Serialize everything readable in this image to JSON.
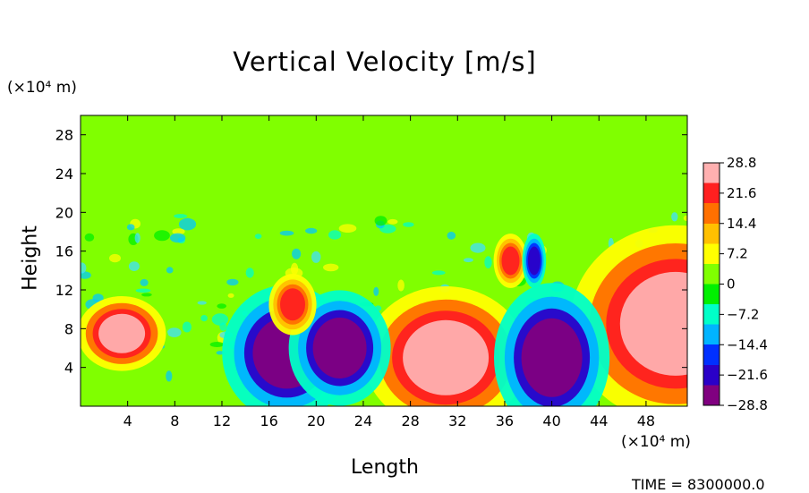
{
  "chart_data": {
    "type": "heatmap",
    "title": "Vertical Velocity [m/s]",
    "xlabel": "Length",
    "ylabel": "Height",
    "x_unit_label": "(×10⁴ m)",
    "y_unit_label": "(×10⁴ m)",
    "xlim": [
      0,
      51.5
    ],
    "ylim": [
      0,
      30
    ],
    "x_ticks": [
      "4",
      "8",
      "12",
      "16",
      "20",
      "24",
      "28",
      "32",
      "36",
      "40",
      "44",
      "48"
    ],
    "x_tick_values": [
      4,
      8,
      12,
      16,
      20,
      24,
      28,
      32,
      36,
      40,
      44,
      48
    ],
    "y_ticks": [
      "4",
      "8",
      "12",
      "16",
      "20",
      "24",
      "28"
    ],
    "y_tick_values": [
      4,
      8,
      12,
      16,
      20,
      24,
      28
    ],
    "colorbar": {
      "range": [
        -28.8,
        28.8
      ],
      "labels": [
        "28.8",
        "21.6",
        "14.4",
        "7.2",
        "0",
        "−7.2",
        "−14.4",
        "−21.6",
        "−28.8"
      ],
      "label_values": [
        28.8,
        21.6,
        14.4,
        7.2,
        0,
        -7.2,
        -14.4,
        -21.6,
        -28.8
      ],
      "colors": [
        "#800080",
        "#2a00c8",
        "#0030ff",
        "#00b4ff",
        "#00ffc8",
        "#00f000",
        "#80ff00",
        "#ffff00",
        "#ffc000",
        "#ff7000",
        "#ff2020",
        "#ffb0b0"
      ]
    },
    "background_value": 0,
    "features": [
      {
        "x": 3.5,
        "y": 7.5,
        "value": 28.8
      },
      {
        "x": 50.5,
        "y": 8.5,
        "value": 28.8
      },
      {
        "x": 31,
        "y": 5,
        "value": 28.8
      },
      {
        "x": 17.5,
        "y": 5.5,
        "value": -28.8
      },
      {
        "x": 22,
        "y": 6,
        "value": -28.8
      },
      {
        "x": 40,
        "y": 5,
        "value": -28.8
      },
      {
        "x": 18,
        "y": 10.5,
        "value": 21.6
      },
      {
        "x": 36.5,
        "y": 15,
        "value": 21.6
      },
      {
        "x": 38.5,
        "y": 15,
        "value": -21.6
      }
    ],
    "time_label": "TIME = 8300000.0"
  }
}
